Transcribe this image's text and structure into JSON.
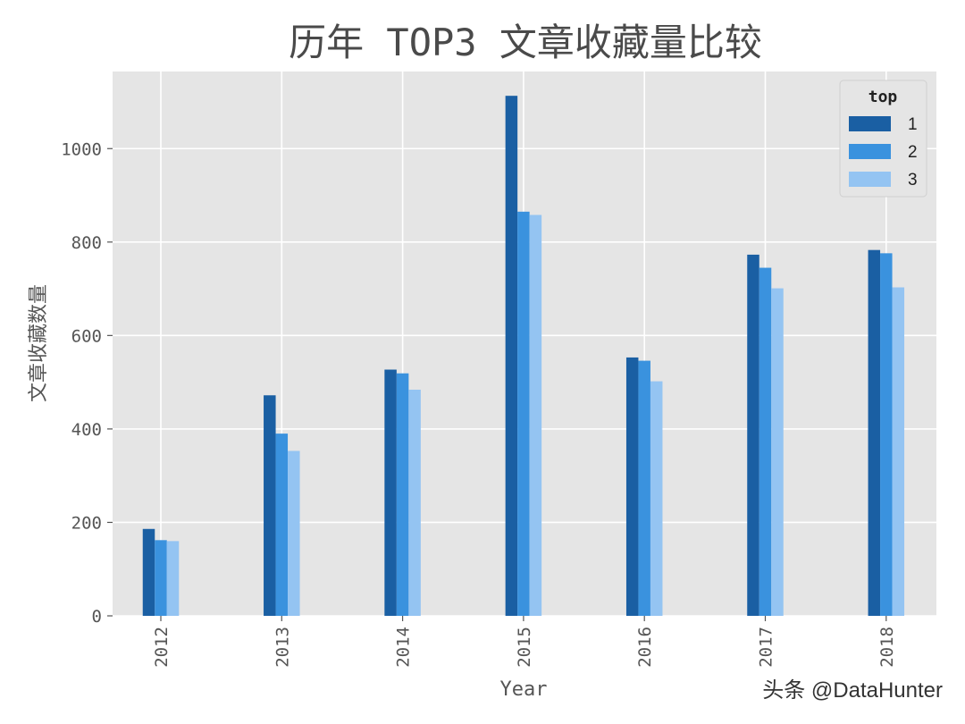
{
  "watermark": "头条 @DataHunter",
  "chart_data": {
    "type": "bar",
    "title": "历年 TOP3 文章收藏量比较",
    "xlabel": "Year",
    "ylabel": "文章收藏数量",
    "categories": [
      "2012",
      "2013",
      "2014",
      "2015",
      "2016",
      "2017",
      "2018"
    ],
    "series": [
      {
        "name": "1",
        "color": "#1a5fa3",
        "values": [
          186,
          472,
          527,
          1113,
          553,
          773,
          783
        ]
      },
      {
        "name": "2",
        "color": "#3a92de",
        "values": [
          162,
          390,
          519,
          865,
          546,
          745,
          776
        ]
      },
      {
        "name": "3",
        "color": "#94c4f2",
        "values": [
          160,
          353,
          484,
          858,
          502,
          701,
          703
        ]
      }
    ],
    "yticks": [
      0,
      200,
      400,
      600,
      800,
      1000
    ],
    "ylim": [
      0,
      1165
    ],
    "legend_title": "top",
    "legend_position": "top-right",
    "grid": true,
    "background": "#e5e5e5",
    "x_tick_rotation": "vertical"
  }
}
